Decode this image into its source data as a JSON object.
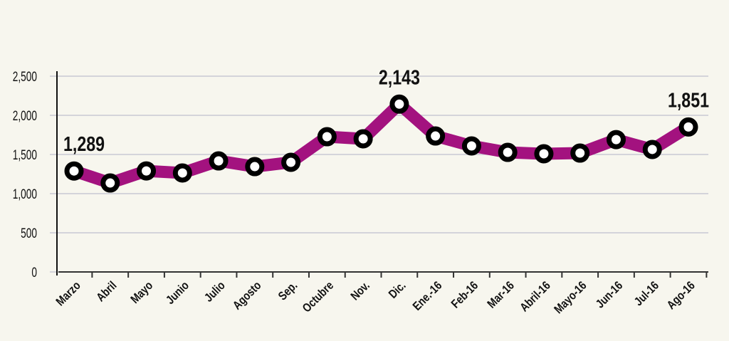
{
  "chart_data": {
    "type": "line",
    "title": "",
    "xlabel": "",
    "ylabel": "",
    "categories": [
      "Marzo",
      "Abril",
      "Mayo",
      "Junio",
      "Julio",
      "Agosto",
      "Sep.",
      "Octubre",
      "Nov.",
      "Dic.",
      "Ene.-16",
      "Feb-16",
      "Mar-16",
      "Abril-16",
      "Mayo-16",
      "Jun-16",
      "Jul-16",
      "Ago-16"
    ],
    "series": [
      {
        "name": "",
        "values": [
          1289,
          1136,
          1290,
          1264,
          1418,
          1345,
          1400,
          1727,
          1700,
          2143,
          1736,
          1609,
          1527,
          1509,
          1518,
          1690,
          1564,
          1851
        ]
      }
    ],
    "data_labels": [
      {
        "index": 0,
        "text": "1,289"
      },
      {
        "index": 9,
        "text": "2,143"
      },
      {
        "index": 17,
        "text": "1,851"
      }
    ],
    "ylim": [
      0,
      2500
    ],
    "yticks": [
      0,
      500,
      1000,
      1500,
      2000,
      2500
    ],
    "ytick_labels": [
      "0",
      "500",
      "1,000",
      "1,500",
      "2,000",
      "2,500"
    ],
    "grid": true,
    "colors": {
      "line": "#a3127f",
      "marker": "#000000",
      "marker_fill": "#ffffff",
      "grid": "#c9c9d4",
      "background": "#f7f6ee"
    }
  }
}
